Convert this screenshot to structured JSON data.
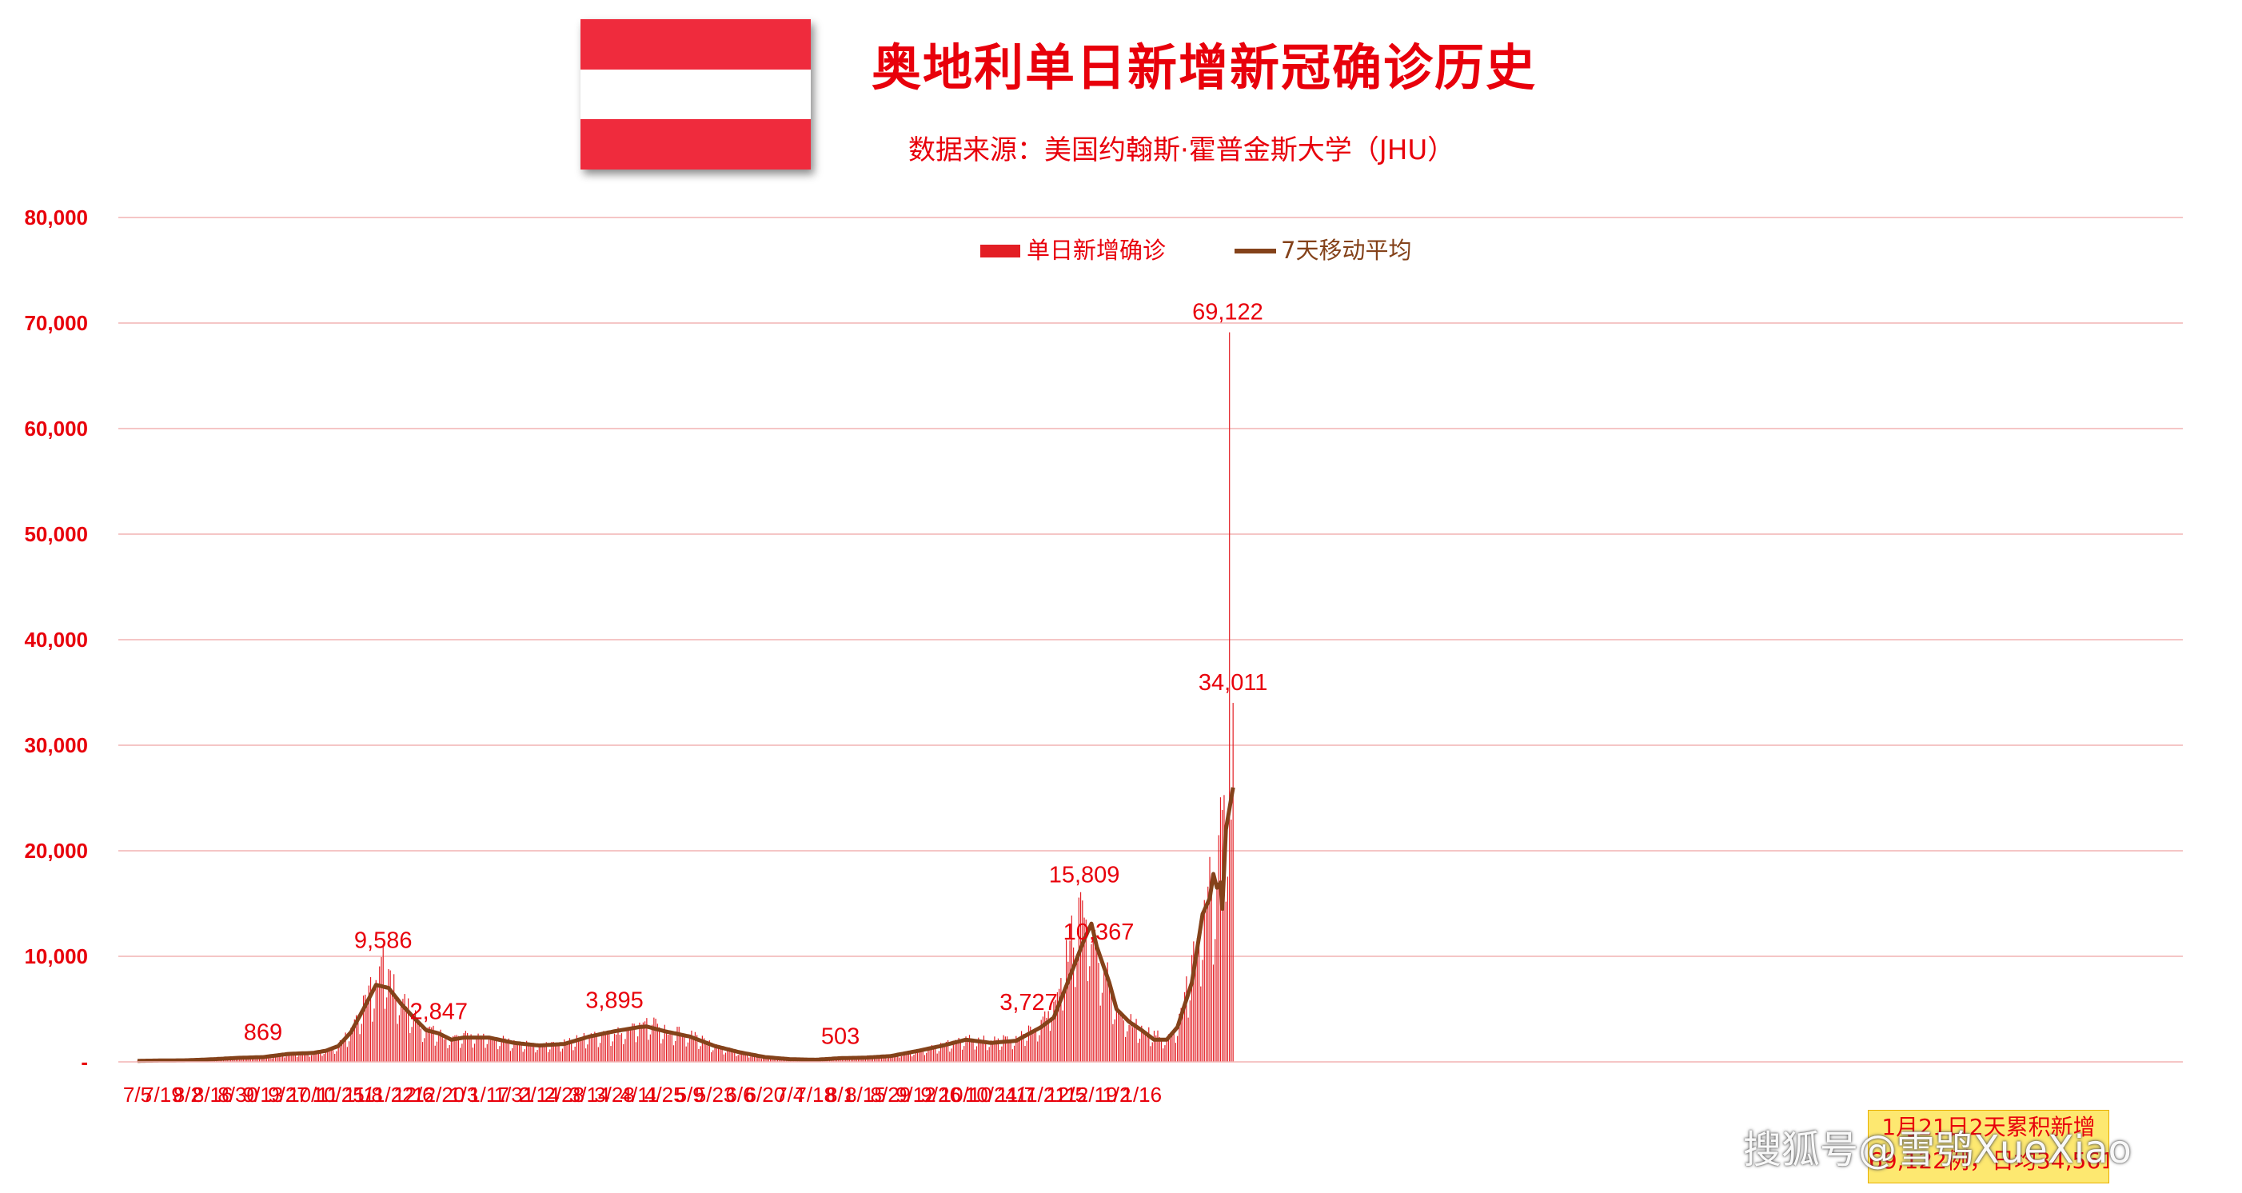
{
  "colors": {
    "flag_red": "#ef2b3d",
    "flag_white": "#ffffff",
    "title": "#e8000b",
    "subtitle": "#e8000b",
    "bar": "#e31e24",
    "line": "#84421a",
    "grid": "#f2b4b4",
    "ytick": "#e8000b",
    "xtick": "#e8000b",
    "label": "#e8000b",
    "legend_text_bar": "#e8000b",
    "legend_text_line": "#84421a",
    "note_text": "#e8000b"
  },
  "header": {
    "title": "奥地利单日新增新冠确诊历史",
    "subtitle": "数据来源：美国约翰斯·霍普金斯大学（JHU）"
  },
  "note": {
    "line1": "1月21日2天累积新增",
    "line2": "69,122例，日均34,561例。"
  },
  "watermark": "搜狐号@雪鸮XueXiao",
  "chart_data": {
    "type": "bar",
    "title": "奥地利单日新增新冠确诊历史",
    "xlabel": "",
    "ylabel": "",
    "ylim": [
      0,
      80000
    ],
    "yticks": [
      0,
      10000,
      20000,
      30000,
      40000,
      50000,
      60000,
      70000,
      80000
    ],
    "ytick_labels": [
      "-",
      "10,000",
      "20,000",
      "30,000",
      "40,000",
      "50,000",
      "60,000",
      "70,000",
      "80,000"
    ],
    "x_tick_labels": [
      "7/5",
      "7/19",
      "8/2",
      "8/16",
      "8/30",
      "9/13",
      "9/27",
      "10/11",
      "10/25",
      "11/8",
      "11/22",
      "12/6",
      "12/20",
      "1/3",
      "1/17",
      "1/31",
      "2/14",
      "2/28",
      "3/14",
      "3/28",
      "4/11",
      "4/25",
      "5/9",
      "5/23",
      "6/6",
      "6/20",
      "7/4",
      "7/18",
      "8/1",
      "8/15",
      "8/29",
      "9/12",
      "9/26",
      "10/10",
      "10/24",
      "11/7",
      "11/21",
      "12/5",
      "12/19",
      "1/2",
      "1/16"
    ],
    "x_tick_interval_days": 14,
    "grid": true,
    "legend_position": "top-center",
    "legend": [
      "单日新增确诊",
      "7天移动平均"
    ],
    "series": [
      {
        "name": "单日新增确诊",
        "type": "bar",
        "note": "daily values reconstructed from the 7-day average with day-to-day variation",
        "anchors": [
          [
            0,
            100
          ],
          [
            14,
            150
          ],
          [
            28,
            150
          ],
          [
            42,
            250
          ],
          [
            56,
            400
          ],
          [
            70,
            500
          ],
          [
            84,
            800
          ],
          [
            98,
            900
          ],
          [
            105,
            1100
          ],
          [
            112,
            1500
          ],
          [
            119,
            3000
          ],
          [
            126,
            5500
          ],
          [
            133,
            7500
          ],
          [
            137,
            9586
          ],
          [
            143,
            7000
          ],
          [
            154,
            4500
          ],
          [
            161,
            3000
          ],
          [
            168,
            2700
          ],
          [
            175,
            2200
          ],
          [
            182,
            2500
          ],
          [
            196,
            2400
          ],
          [
            210,
            1800
          ],
          [
            224,
            1600
          ],
          [
            238,
            1800
          ],
          [
            252,
            2400
          ],
          [
            266,
            2800
          ],
          [
            280,
            3500
          ],
          [
            284,
            3895
          ],
          [
            294,
            3000
          ],
          [
            308,
            2600
          ],
          [
            322,
            1500
          ],
          [
            336,
            900
          ],
          [
            350,
            500
          ],
          [
            364,
            300
          ],
          [
            378,
            200
          ],
          [
            392,
            400
          ],
          [
            406,
            503
          ],
          [
            420,
            600
          ],
          [
            434,
            1000
          ],
          [
            448,
            1500
          ],
          [
            462,
            2200
          ],
          [
            476,
            2000
          ],
          [
            490,
            2200
          ],
          [
            504,
            3727
          ],
          [
            511,
            6000
          ],
          [
            518,
            10000
          ],
          [
            528,
            15809
          ],
          [
            532,
            12000
          ],
          [
            535,
            10367
          ],
          [
            542,
            8000
          ],
          [
            546,
            5000
          ],
          [
            553,
            4000
          ],
          [
            560,
            3000
          ],
          [
            574,
            2200
          ],
          [
            580,
            3500
          ],
          [
            588,
            9000
          ],
          [
            598,
            17000
          ],
          [
            602,
            16500
          ],
          [
            607,
            27600
          ],
          [
            610,
            20000
          ],
          [
            612,
            23000
          ]
        ]
      },
      {
        "name": "7天移动平均",
        "type": "line",
        "anchors": [
          [
            0,
            100
          ],
          [
            14,
            130
          ],
          [
            28,
            150
          ],
          [
            42,
            250
          ],
          [
            56,
            380
          ],
          [
            70,
            450
          ],
          [
            84,
            750
          ],
          [
            98,
            850
          ],
          [
            105,
            1050
          ],
          [
            112,
            1500
          ],
          [
            119,
            2800
          ],
          [
            126,
            5000
          ],
          [
            133,
            7300
          ],
          [
            140,
            7000
          ],
          [
            147,
            5500
          ],
          [
            154,
            4200
          ],
          [
            161,
            3000
          ],
          [
            168,
            2700
          ],
          [
            175,
            2100
          ],
          [
            182,
            2300
          ],
          [
            196,
            2300
          ],
          [
            210,
            1800
          ],
          [
            224,
            1550
          ],
          [
            238,
            1700
          ],
          [
            252,
            2400
          ],
          [
            266,
            2900
          ],
          [
            280,
            3300
          ],
          [
            284,
            3350
          ],
          [
            294,
            2900
          ],
          [
            308,
            2400
          ],
          [
            322,
            1500
          ],
          [
            336,
            900
          ],
          [
            350,
            450
          ],
          [
            364,
            250
          ],
          [
            378,
            200
          ],
          [
            392,
            350
          ],
          [
            406,
            400
          ],
          [
            420,
            550
          ],
          [
            434,
            1000
          ],
          [
            448,
            1500
          ],
          [
            462,
            2100
          ],
          [
            476,
            1800
          ],
          [
            490,
            2000
          ],
          [
            504,
            3300
          ],
          [
            511,
            4200
          ],
          [
            518,
            7200
          ],
          [
            528,
            11600
          ],
          [
            532,
            13100
          ],
          [
            535,
            10900
          ],
          [
            542,
            7500
          ],
          [
            546,
            5000
          ],
          [
            553,
            3800
          ],
          [
            560,
            3000
          ],
          [
            567,
            2100
          ],
          [
            574,
            2100
          ],
          [
            580,
            3300
          ],
          [
            588,
            7500
          ],
          [
            594,
            14000
          ],
          [
            598,
            15500
          ],
          [
            600,
            17800
          ],
          [
            602,
            16500
          ],
          [
            604,
            17000
          ],
          [
            605,
            14500
          ],
          [
            607,
            22000
          ],
          [
            610,
            25000
          ],
          [
            611,
            26000
          ]
        ]
      },
      {
        "name": "spike",
        "type": "bar",
        "x_index": 609,
        "value": 69122
      },
      {
        "name": "last",
        "type": "bar",
        "x_index": 611,
        "value": 34011
      }
    ],
    "data_labels": [
      {
        "day": 70,
        "value": 869,
        "text": "869"
      },
      {
        "day": 137,
        "value": 9586,
        "text": "9,586"
      },
      {
        "day": 168,
        "value": 2847,
        "text": "2,847"
      },
      {
        "day": 266,
        "value": 3895,
        "text": "3,895"
      },
      {
        "day": 392,
        "value": 503,
        "text": "503"
      },
      {
        "day": 497,
        "value": 3727,
        "text": "3,727"
      },
      {
        "day": 528,
        "value": 15809,
        "text": "15,809"
      },
      {
        "day": 536,
        "value": 10367,
        "text": "10,367"
      },
      {
        "day": 608,
        "value": 69122,
        "text": "69,122"
      },
      {
        "day": 611,
        "value": 34011,
        "text": "34,011"
      }
    ]
  }
}
